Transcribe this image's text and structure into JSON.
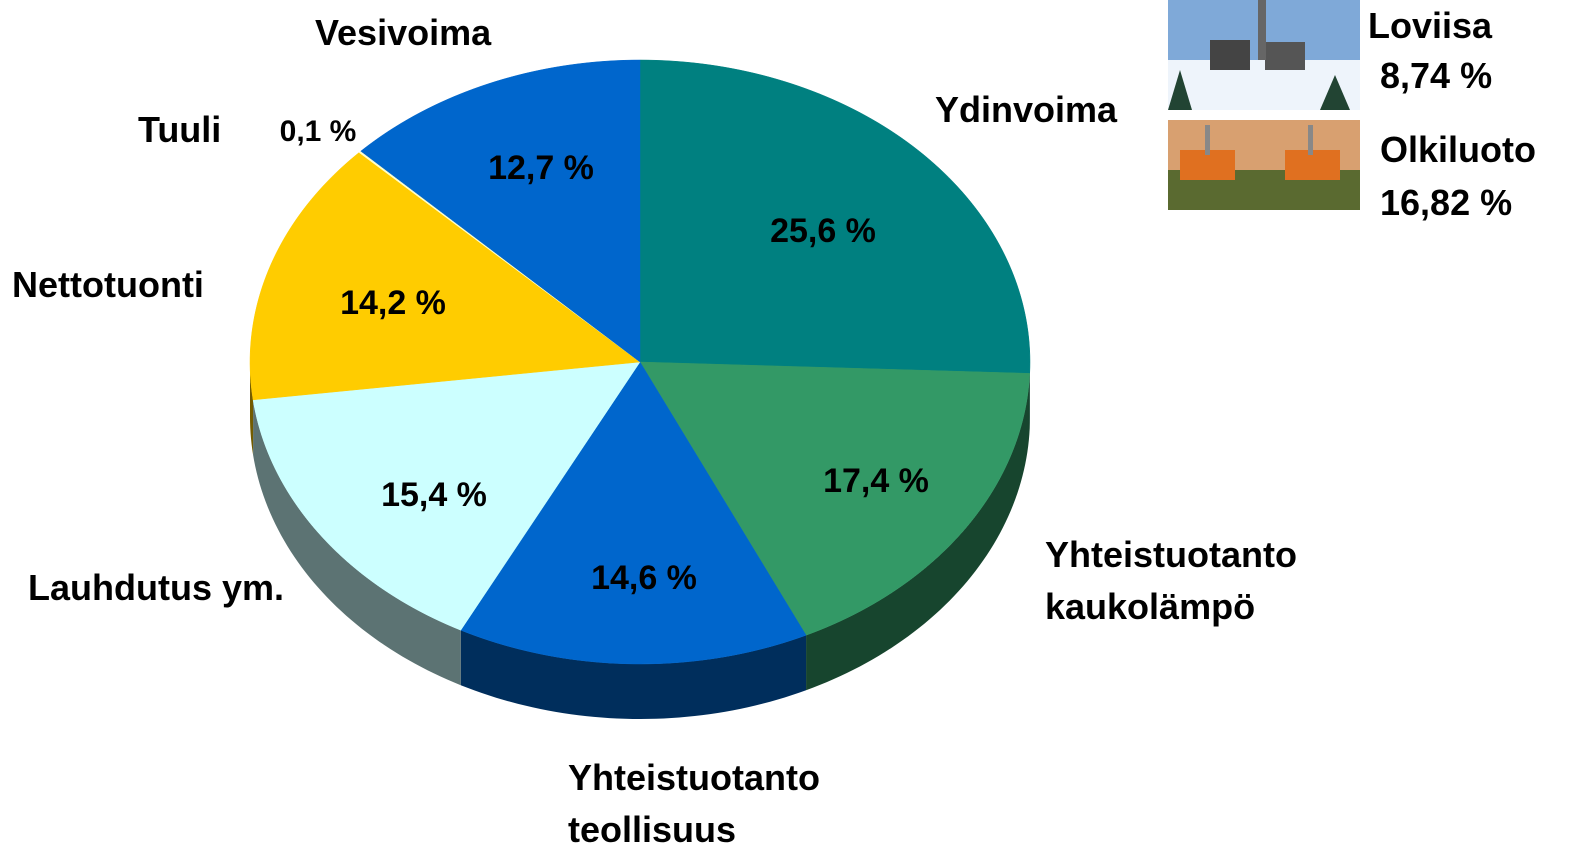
{
  "chart_data": {
    "type": "pie",
    "categories": [
      "Ydinvoima",
      "Yhteistuotanto kaukolämpö",
      "Yhteistuotanto teollisuus",
      "Lauhdutus ym.",
      "Nettotuonti",
      "Tuuli",
      "Vesivoima"
    ],
    "values": [
      25.6,
      17.4,
      14.6,
      15.4,
      14.2,
      0.1,
      12.7
    ],
    "value_labels": [
      "25,6 %",
      "17,4 %",
      "14,6 %",
      "15,4 %",
      "14,2 %",
      "0,1 %",
      "12,7 %"
    ],
    "colors": [
      "#008080",
      "#339966",
      "#0066cc",
      "#ccffff",
      "#ffcc00",
      "#ffffcc",
      "#0066cc"
    ],
    "plants": [
      {
        "name": "Loviisa",
        "value": 8.74,
        "label": "8,74 %"
      },
      {
        "name": "Olkiluoto",
        "value": 16.82,
        "label": "16,82 %"
      }
    ]
  }
}
